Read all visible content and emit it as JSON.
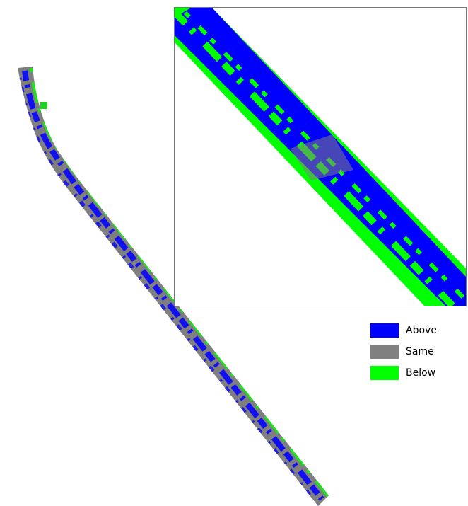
{
  "legend": {
    "items": [
      {
        "label": "Above",
        "color": "#0000ff"
      },
      {
        "label": "Same",
        "color": "#808080"
      },
      {
        "label": "Below",
        "color": "#00ff00"
      }
    ]
  }
}
